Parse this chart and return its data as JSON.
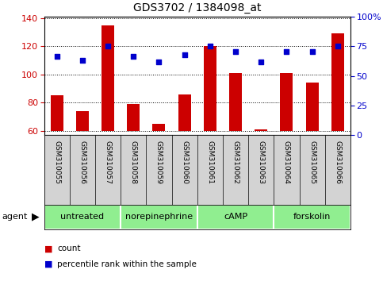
{
  "title": "GDS3702 / 1384098_at",
  "samples": [
    "GSM310055",
    "GSM310056",
    "GSM310057",
    "GSM310058",
    "GSM310059",
    "GSM310060",
    "GSM310061",
    "GSM310062",
    "GSM310063",
    "GSM310064",
    "GSM310065",
    "GSM310066"
  ],
  "count_values": [
    85,
    74,
    135,
    79,
    65,
    86,
    120,
    101,
    61,
    101,
    94,
    129
  ],
  "percentile_values": [
    113,
    110,
    120,
    113,
    109,
    114,
    120,
    116,
    109,
    116,
    116,
    120
  ],
  "ylim_left": [
    57,
    141
  ],
  "yticks_left": [
    60,
    80,
    100,
    120,
    140
  ],
  "yticks_right": [
    0,
    25,
    50,
    75,
    100
  ],
  "ytick_right_labels": [
    "0",
    "25",
    "50",
    "75",
    "100%"
  ],
  "pct_ylim": [
    0,
    100
  ],
  "bar_color": "#cc0000",
  "dot_color": "#0000cc",
  "agents": [
    {
      "label": "untreated",
      "start": 0,
      "end": 3
    },
    {
      "label": "norepinephrine",
      "start": 3,
      "end": 6
    },
    {
      "label": "cAMP",
      "start": 6,
      "end": 9
    },
    {
      "label": "forskolin",
      "start": 9,
      "end": 12
    }
  ],
  "agent_label": "agent",
  "legend_count_label": "count",
  "legend_pct_label": "percentile rank within the sample",
  "bar_bottom": 60,
  "bar_width": 0.5,
  "dot_size": 20
}
